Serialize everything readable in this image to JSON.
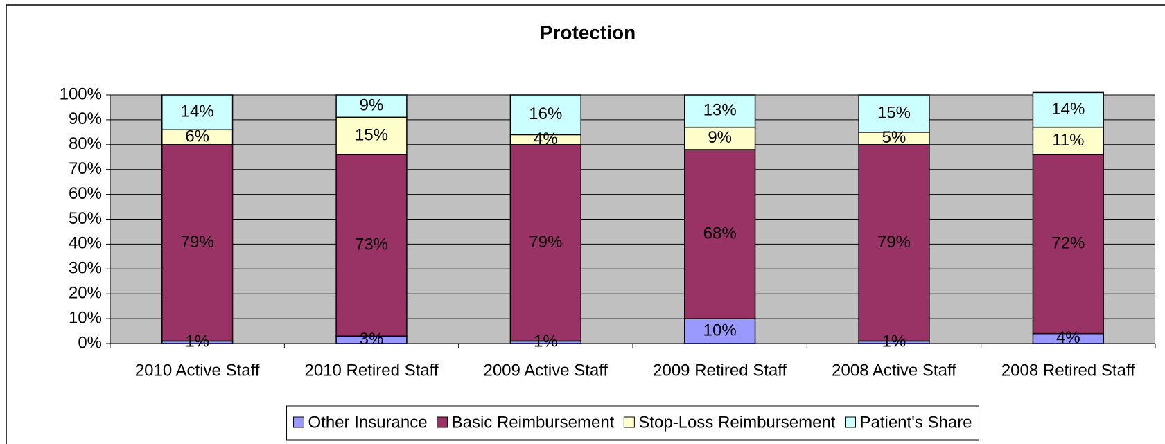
{
  "chart_data": {
    "type": "bar",
    "stacked": true,
    "title": "Protection",
    "categories": [
      "2010 Active Staff",
      "2010 Retired Staff",
      "2009 Active Staff",
      "2009 Retired Staff",
      "2008 Active Staff",
      "2008 Retired Staff"
    ],
    "series": [
      {
        "name": "Other Insurance",
        "color": "#9999ff",
        "values": [
          1,
          3,
          1,
          10,
          1,
          4
        ],
        "value_labels": [
          "1%",
          "3%",
          "1%",
          "10%",
          "1%",
          "4%"
        ]
      },
      {
        "name": "Basic Reimbursement",
        "color": "#993366",
        "values": [
          79,
          73,
          79,
          68,
          79,
          72
        ],
        "value_labels": [
          "79%",
          "73%",
          "79%",
          "68%",
          "79%",
          "72%"
        ]
      },
      {
        "name": "Stop-Loss Reimbursement",
        "color": "#ffffcc",
        "values": [
          6,
          15,
          4,
          9,
          5,
          11
        ],
        "value_labels": [
          "6%",
          "15%",
          "4%",
          "9%",
          "5%",
          "11%"
        ]
      },
      {
        "name": "Patient's Share",
        "color": "#ccffff",
        "values": [
          14,
          9,
          16,
          13,
          15,
          14
        ],
        "value_labels": [
          "14%",
          "9%",
          "16%",
          "13%",
          "15%",
          "14%"
        ]
      }
    ],
    "ylim": [
      0,
      100
    ],
    "yticks": [
      {
        "value": 0,
        "label": "0%"
      },
      {
        "value": 10,
        "label": "10%"
      },
      {
        "value": 20,
        "label": "20%"
      },
      {
        "value": 30,
        "label": "30%"
      },
      {
        "value": 40,
        "label": "40%"
      },
      {
        "value": 50,
        "label": "50%"
      },
      {
        "value": 60,
        "label": "60%"
      },
      {
        "value": 70,
        "label": "70%"
      },
      {
        "value": 80,
        "label": "80%"
      },
      {
        "value": 90,
        "label": "90%"
      },
      {
        "value": 100,
        "label": "100%"
      }
    ],
    "grid": true,
    "legend": "bottom",
    "plot_background": "#c0c0c0"
  }
}
